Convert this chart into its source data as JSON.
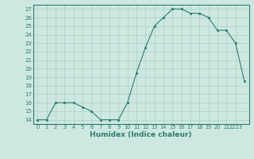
{
  "x": [
    0,
    1,
    2,
    3,
    4,
    5,
    6,
    7,
    8,
    9,
    10,
    11,
    12,
    13,
    14,
    15,
    16,
    17,
    18,
    19,
    20,
    21,
    22,
    23
  ],
  "y": [
    14,
    14,
    16,
    16,
    16,
    15.5,
    15,
    14,
    14,
    14,
    16,
    19.5,
    22.5,
    25,
    26,
    27,
    27,
    26.5,
    26.5,
    26,
    24.5,
    24.5,
    23,
    18.5
  ],
  "line_color": "#2e7d6e",
  "marker_color": "#2e7d6e",
  "bg_color": "#cde8e0",
  "grid_color": "#aacfc7",
  "xlabel": "Humidex (Indice chaleur)",
  "ylabel_ticks": [
    14,
    15,
    16,
    17,
    18,
    19,
    20,
    21,
    22,
    23,
    24,
    25,
    26,
    27
  ],
  "xlim": [
    -0.5,
    23.5
  ],
  "ylim": [
    13.5,
    27.5
  ],
  "axis_color": "#2e7d6e"
}
